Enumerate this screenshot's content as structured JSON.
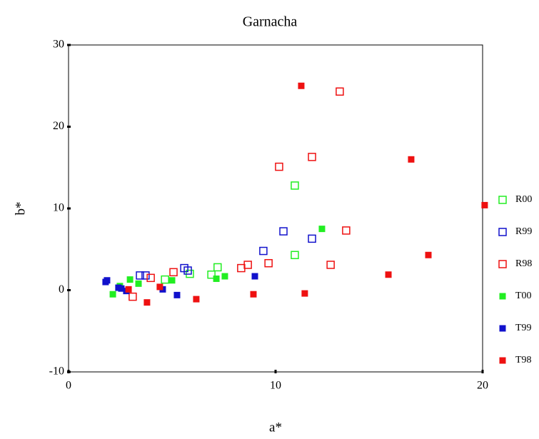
{
  "chart_data": {
    "type": "scatter",
    "title": "Garnacha",
    "x_label": "a*",
    "y_label": "b*",
    "xlim": [
      0,
      20
    ],
    "xticks": [
      0,
      10,
      20
    ],
    "ylim": [
      -10,
      30
    ],
    "yticks": [
      -10,
      0,
      10,
      20,
      30
    ],
    "legend": "right",
    "series": [
      {
        "name": "R00",
        "color": "#22ee22",
        "marker": "open",
        "x": [
          4.66,
          5.86,
          6.9,
          7.2,
          10.93,
          10.93
        ],
        "y": [
          1.3,
          2.0,
          1.9,
          2.8,
          4.3,
          12.8
        ]
      },
      {
        "name": "R99",
        "color": "#1111cc",
        "marker": "open",
        "x": [
          3.45,
          3.72,
          5.59,
          5.76,
          9.41,
          10.38,
          11.76
        ],
        "y": [
          1.8,
          1.8,
          2.7,
          2.4,
          4.8,
          7.2,
          6.3
        ]
      },
      {
        "name": "R98",
        "color": "#ee1111",
        "marker": "open",
        "x": [
          3.1,
          3.97,
          5.07,
          8.34,
          8.66,
          9.66,
          10.17,
          11.76,
          12.66,
          13.41,
          13.1
        ],
        "y": [
          -0.8,
          1.5,
          2.2,
          2.7,
          3.1,
          3.3,
          15.1,
          16.3,
          3.1,
          7.3,
          24.3
        ]
      },
      {
        "name": "T00",
        "color": "#22ee22",
        "marker": "filled",
        "x": [
          2.14,
          2.48,
          2.97,
          3.38,
          5.0,
          7.14,
          7.55,
          12.24
        ],
        "y": [
          -0.5,
          0.5,
          1.3,
          0.8,
          1.2,
          1.4,
          1.7,
          7.5
        ]
      },
      {
        "name": "T99",
        "color": "#1111cc",
        "marker": "filled",
        "x": [
          1.79,
          1.86,
          2.41,
          2.55,
          2.79,
          4.55,
          5.24,
          9.0
        ],
        "y": [
          1.0,
          1.2,
          0.3,
          0.2,
          -0.1,
          0.1,
          -0.6,
          1.7
        ]
      },
      {
        "name": "T98",
        "color": "#ee1111",
        "marker": "filled",
        "x": [
          2.9,
          3.79,
          4.41,
          6.17,
          8.93,
          11.24,
          11.41,
          15.45,
          16.55,
          17.38,
          20.1
        ],
        "y": [
          0.1,
          -1.5,
          0.4,
          -1.1,
          -0.5,
          25.0,
          -0.4,
          1.9,
          16.0,
          4.3,
          10.4
        ]
      }
    ]
  }
}
